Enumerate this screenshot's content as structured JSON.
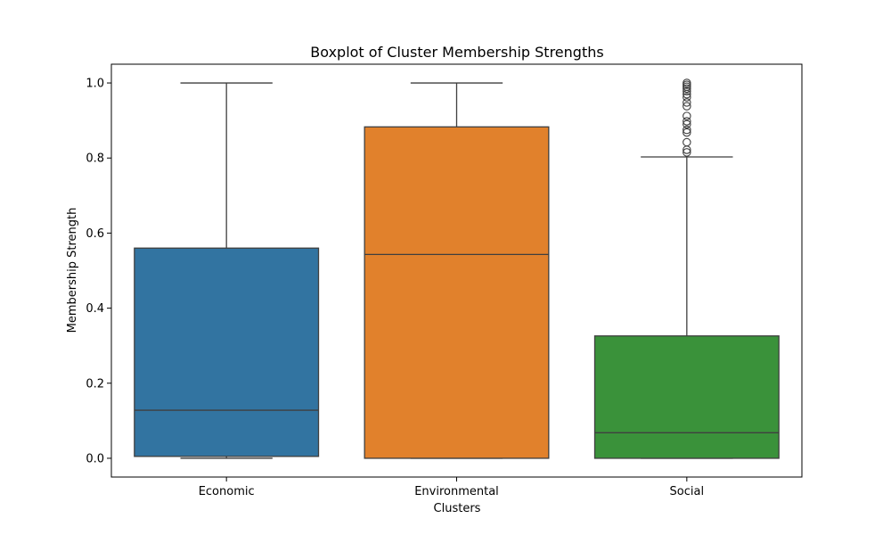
{
  "chart_data": {
    "type": "boxplot",
    "title": "Boxplot of Cluster Membership Strengths",
    "xlabel": "Clusters",
    "ylabel": "Membership Strength",
    "ylim": [
      -0.05,
      1.05
    ],
    "yticks": [
      "0.0",
      "0.2",
      "0.4",
      "0.6",
      "0.8",
      "1.0"
    ],
    "categories": [
      "Economic",
      "Environmental",
      "Social"
    ],
    "colors": [
      "#3274a1",
      "#e1812c",
      "#3a923a"
    ],
    "boxes": [
      {
        "category": "Economic",
        "whisker_low": 0.0,
        "q1": 0.005,
        "median": 0.128,
        "q3": 0.56,
        "whisker_high": 1.0,
        "outliers": []
      },
      {
        "category": "Environmental",
        "whisker_low": 0.0,
        "q1": 0.0,
        "median": 0.543,
        "q3": 0.883,
        "whisker_high": 1.0,
        "outliers": []
      },
      {
        "category": "Social",
        "whisker_low": 0.0,
        "q1": 0.0,
        "median": 0.068,
        "q3": 0.326,
        "whisker_high": 0.803,
        "outliers": [
          0.815,
          0.822,
          0.842,
          0.868,
          0.875,
          0.89,
          0.898,
          0.912,
          0.938,
          0.948,
          0.962,
          0.97,
          0.978,
          0.985,
          0.99,
          0.995,
          1.0
        ]
      }
    ],
    "grid": false,
    "legend": "none"
  }
}
